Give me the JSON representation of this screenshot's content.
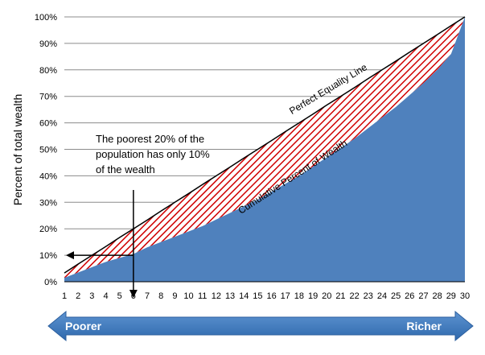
{
  "chart_data": {
    "type": "area",
    "ylabel": "Percent of total wealth",
    "x": [
      1,
      2,
      3,
      4,
      5,
      6,
      7,
      8,
      9,
      10,
      11,
      12,
      13,
      14,
      15,
      16,
      17,
      18,
      19,
      20,
      21,
      22,
      23,
      24,
      25,
      26,
      27,
      28,
      29,
      30
    ],
    "x_tick_labels": [
      "1",
      "2",
      "3",
      "4",
      "5",
      "6",
      "7",
      "8",
      "9",
      "10",
      "11",
      "12",
      "13",
      "14",
      "15",
      "16",
      "17",
      "18",
      "19",
      "20",
      "21",
      "22",
      "23",
      "24",
      "25",
      "26",
      "27",
      "28",
      "29",
      "30"
    ],
    "y_tick_labels": [
      "0%",
      "10%",
      "20%",
      "30%",
      "40%",
      "50%",
      "60%",
      "70%",
      "80%",
      "90%",
      "100%"
    ],
    "ylim": [
      0,
      100
    ],
    "series": [
      {
        "name": "Perfect Equality Line",
        "values": [
          3.3,
          6.7,
          10.0,
          13.3,
          16.7,
          20.0,
          23.3,
          26.7,
          30.0,
          33.3,
          36.7,
          40.0,
          43.3,
          46.7,
          50.0,
          53.3,
          56.7,
          60.0,
          63.3,
          66.7,
          70.0,
          73.3,
          76.7,
          80.0,
          83.3,
          86.7,
          90.0,
          93.3,
          96.7,
          100.0
        ]
      },
      {
        "name": "Cumulative Percent of Wealth",
        "values": [
          1.5,
          3.5,
          5.5,
          7.5,
          9.0,
          10.5,
          13.0,
          15.0,
          17.0,
          19.0,
          21.0,
          23.5,
          26.0,
          28.5,
          31.0,
          34.0,
          37.0,
          40.0,
          43.5,
          47.0,
          50.5,
          54.0,
          58.0,
          62.0,
          66.0,
          70.5,
          75.0,
          80.0,
          86.0,
          100.0
        ]
      }
    ],
    "annotation": {
      "lines": [
        "The poorest 20% of the",
        "population has only 10%",
        "of the wealth"
      ],
      "x": 6,
      "y": 10
    },
    "grid": true,
    "colors": {
      "area": "#4f81bd",
      "hatch": "#d00000",
      "line": "#000000",
      "grid": "#8c8c8c",
      "arrow": "#3a78be"
    }
  },
  "arrow_bar": {
    "left_label": "Poorer",
    "right_label": "Richer"
  }
}
